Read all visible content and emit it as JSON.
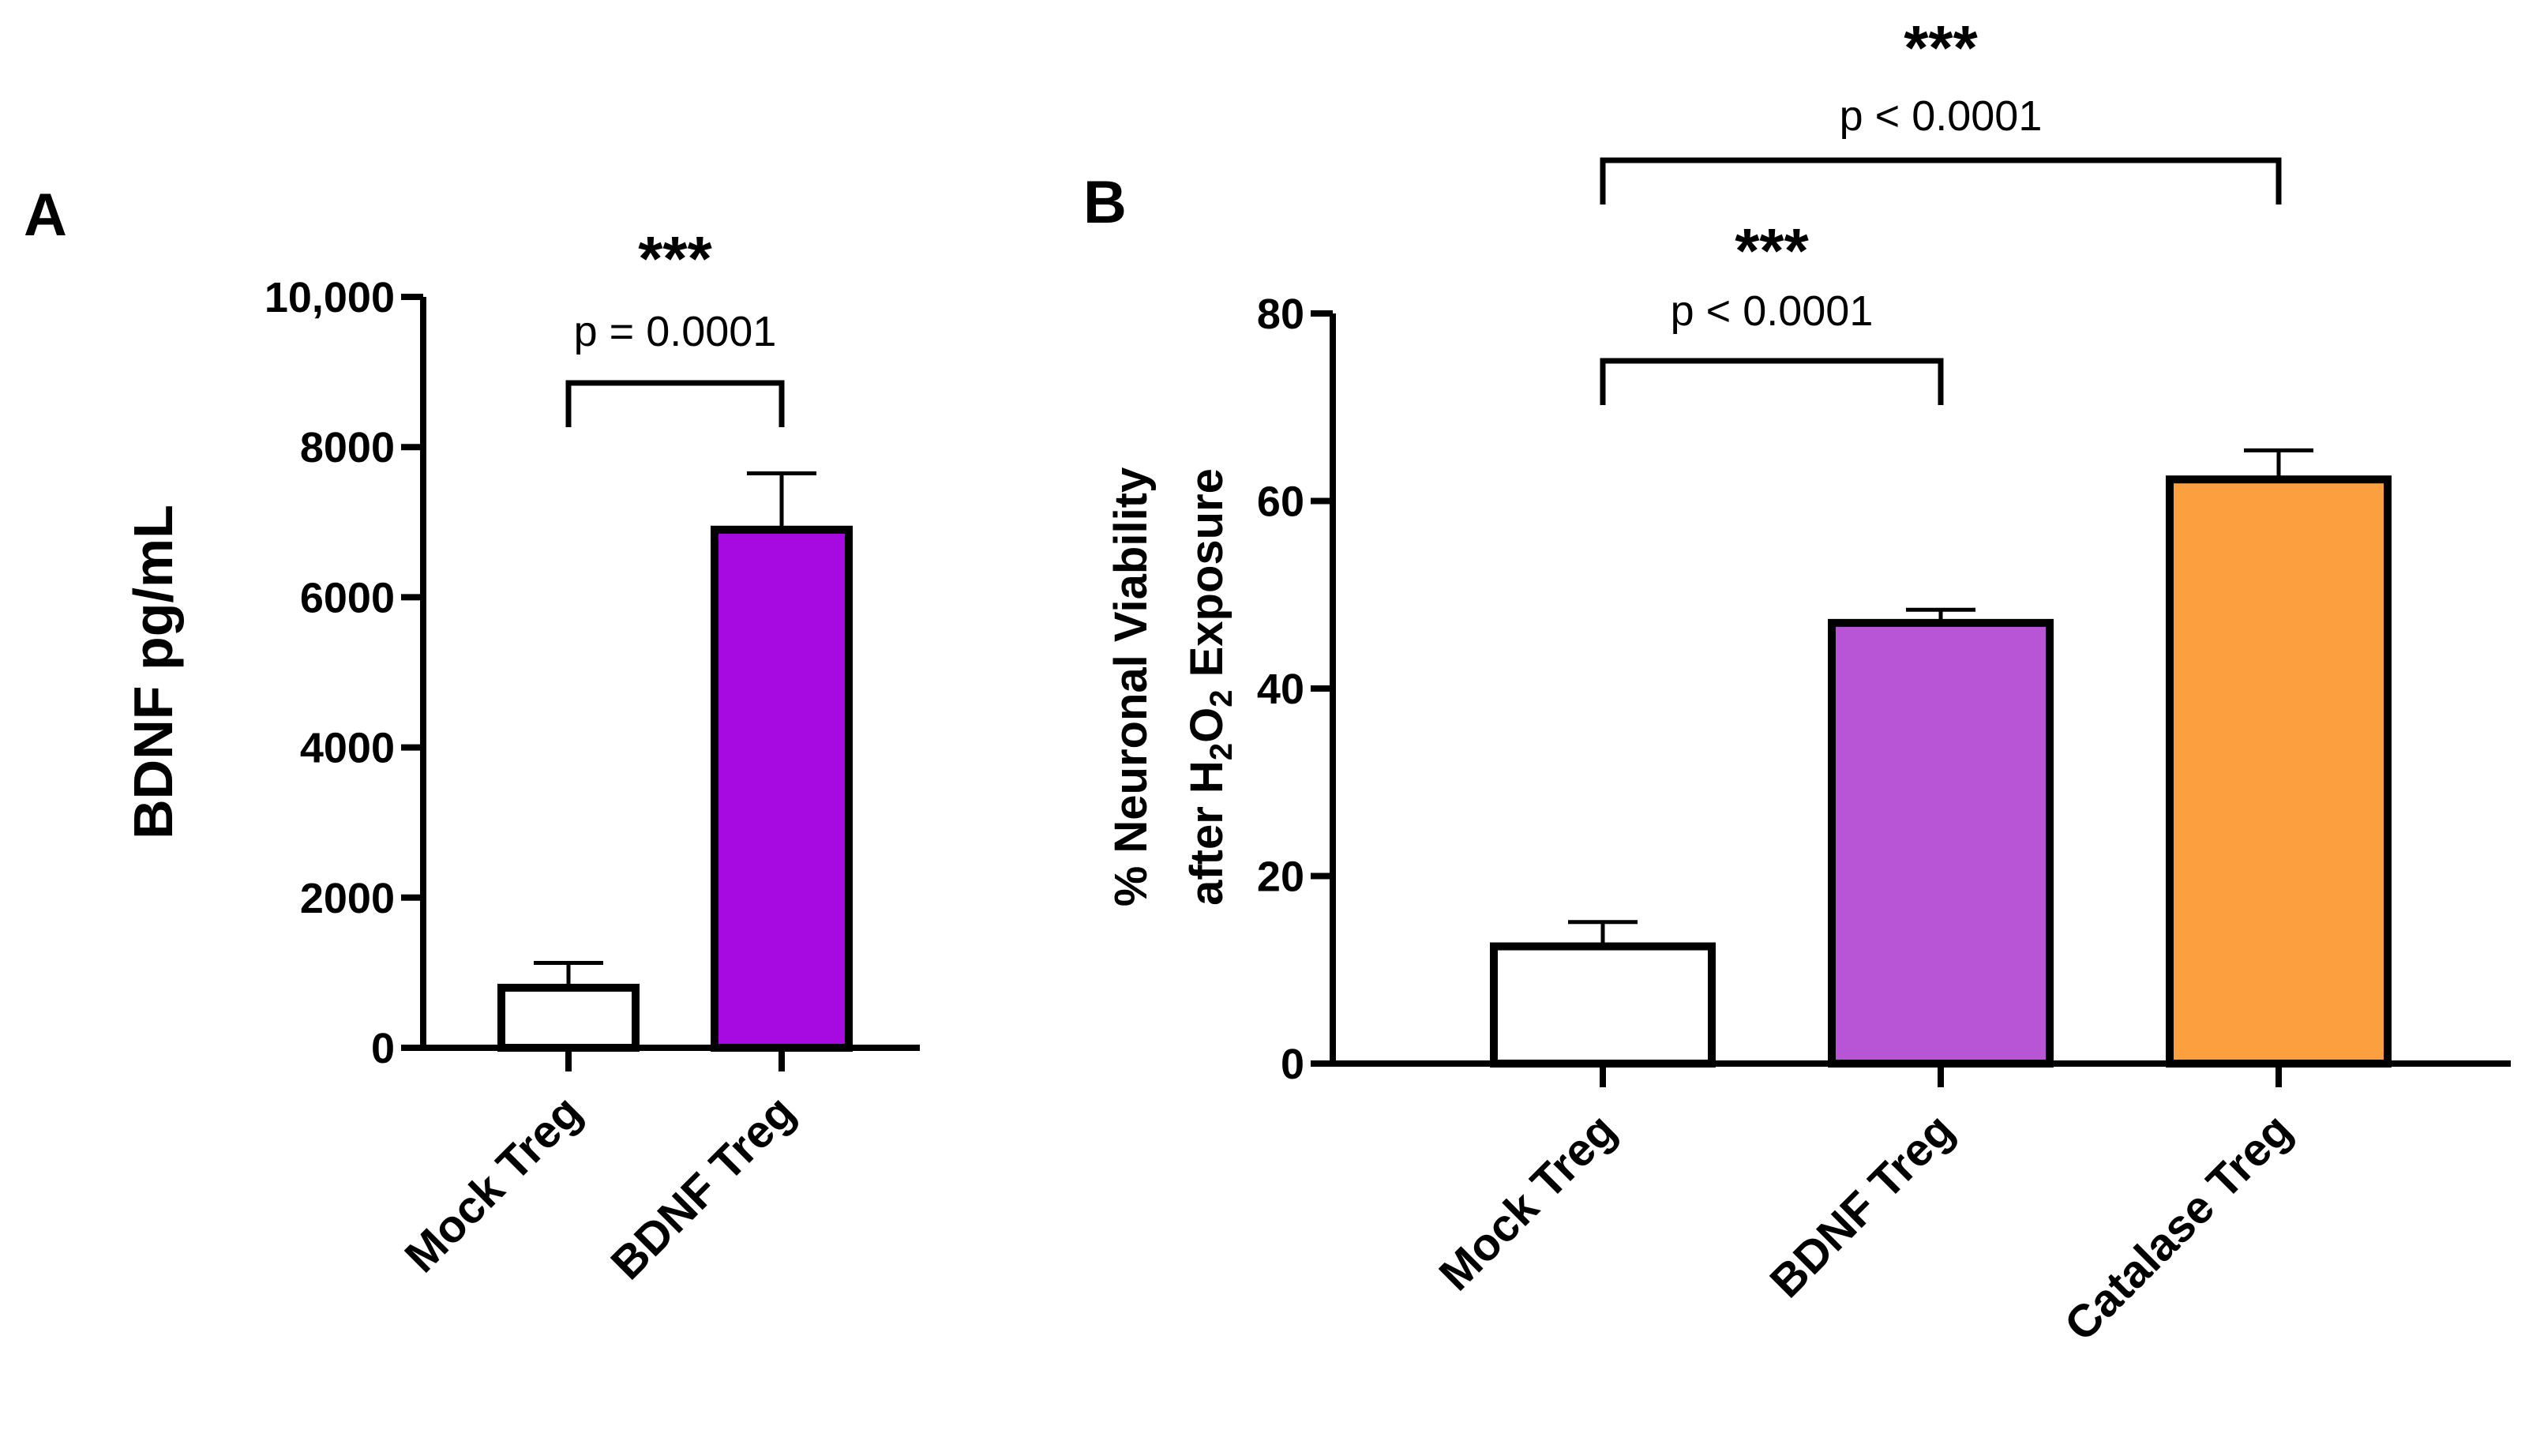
{
  "chart_data": [
    {
      "panel": "A",
      "type": "bar",
      "title": "",
      "xlabel": "",
      "ylabel": "BDNF pg/mL",
      "ylim": [
        0,
        10000
      ],
      "yticks": [
        0,
        2000,
        4000,
        6000,
        8000,
        10000
      ],
      "ytick_labels": [
        "0",
        "2000",
        "4000",
        "6000",
        "8000",
        "10,000"
      ],
      "categories": [
        "Mock Treg",
        "BDNF Treg"
      ],
      "values": [
        800,
        6900
      ],
      "errors": [
        330,
        750
      ],
      "colors": [
        "#ffffff",
        "#a60ae0"
      ],
      "significance": [
        {
          "from": 0,
          "to": 1,
          "stars": "***",
          "p": "p = 0.0001"
        }
      ]
    },
    {
      "panel": "B",
      "type": "bar",
      "title": "",
      "xlabel": "",
      "ylabel_line1": "% Neuronal Viability",
      "ylabel_line2": "after H2O2 Exposure",
      "ylim": [
        0,
        80
      ],
      "yticks": [
        0,
        20,
        40,
        60,
        80
      ],
      "ytick_labels": [
        "0",
        "20",
        "40",
        "60",
        "80"
      ],
      "categories": [
        "Mock Treg",
        "BDNF Treg",
        "Catalase Treg"
      ],
      "values": [
        12.5,
        47,
        62.3
      ],
      "errors": [
        2.6,
        1.4,
        3.1
      ],
      "colors": [
        "#ffffff",
        "#b855d6",
        "#fca03f"
      ],
      "significance": [
        {
          "from": 0,
          "to": 1,
          "stars": "***",
          "p": "p < 0.0001"
        },
        {
          "from": 0,
          "to": 2,
          "stars": "***",
          "p": "p < 0.0001"
        }
      ]
    }
  ]
}
